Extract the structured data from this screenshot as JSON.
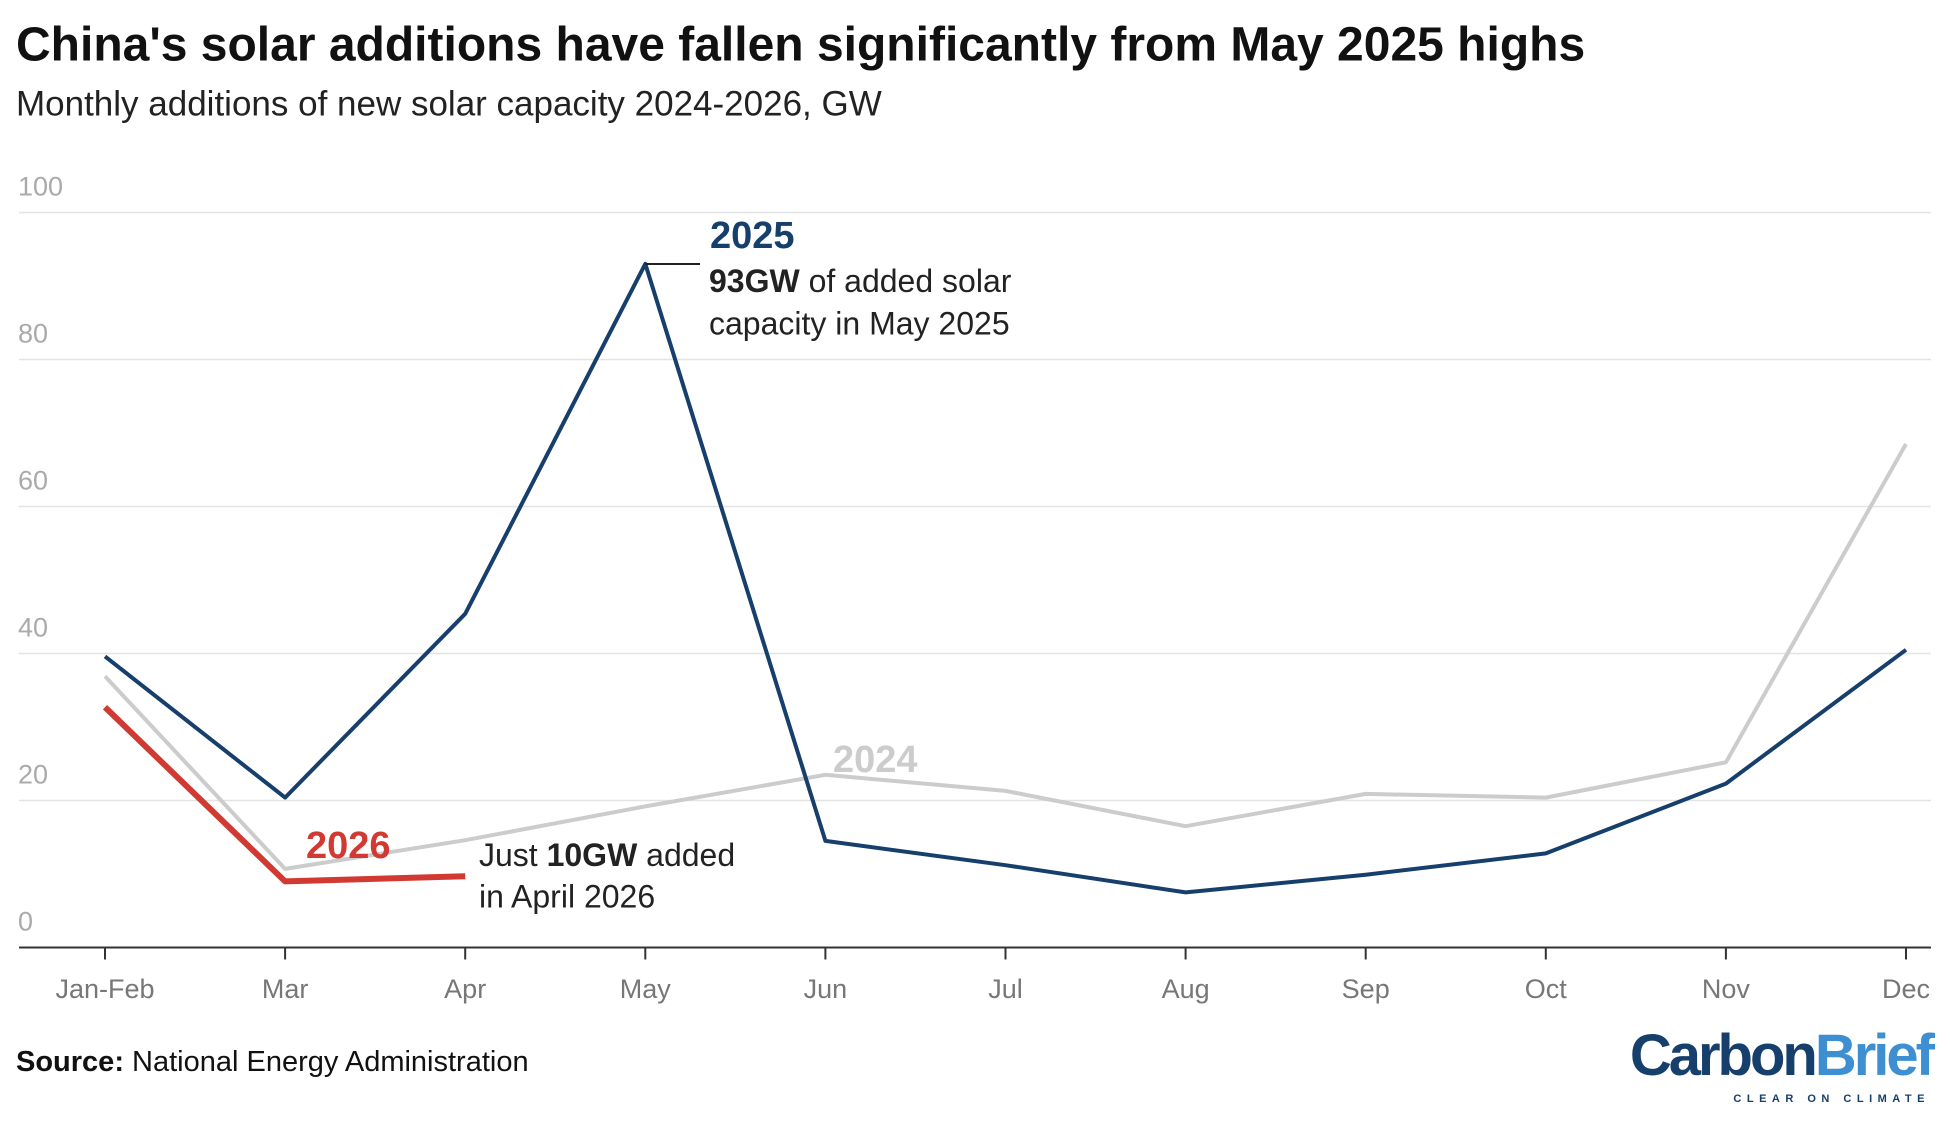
{
  "chart_data": {
    "type": "line",
    "title": "China's solar additions have fallen significantly from May 2025 highs",
    "subtitle": "Monthly additions of new solar capacity 2024-2026, GW",
    "categories": [
      "Jan-Feb",
      "Mar",
      "Apr",
      "May",
      "Jun",
      "Jul",
      "Aug",
      "Sep",
      "Oct",
      "Nov",
      "Dec"
    ],
    "series": [
      {
        "name": "2024",
        "color": "#cccccc",
        "values": [
          36.9,
          10.7,
          14.6,
          19.2,
          23.5,
          21.3,
          16.5,
          20.9,
          20.4,
          25.2,
          68.5
        ]
      },
      {
        "name": "2025",
        "color": "#163f6b",
        "values": [
          39.6,
          20.4,
          45.4,
          93,
          14.5,
          11.2,
          7.5,
          9.9,
          12.8,
          22.3,
          40.5
        ]
      },
      {
        "name": "2026",
        "color": "#d13a32",
        "values": [
          32.7,
          9.0,
          9.7,
          null,
          null,
          null,
          null,
          null,
          null,
          null,
          null
        ]
      }
    ],
    "ylim": [
      0,
      100
    ],
    "yticks": [
      0,
      20,
      40,
      60,
      80,
      100
    ],
    "grid": true,
    "annotations": [
      "93GW",
      "of added solar",
      "capacity in May 2025",
      "Just",
      "10GW",
      "added",
      "in April 2026"
    ],
    "source_label": "Source:",
    "source": "National Energy Administration",
    "brand": [
      "Carbon",
      "Brief"
    ],
    "brand_tagline": "CLEAR ON CLIMATE"
  }
}
